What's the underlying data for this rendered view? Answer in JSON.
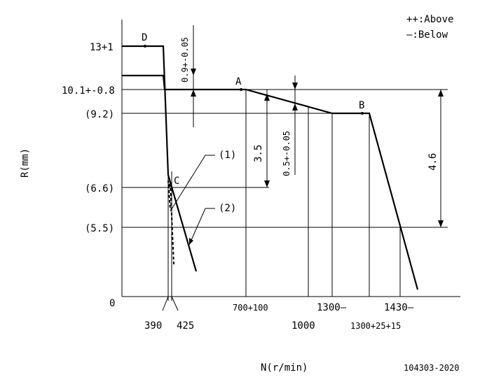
{
  "legend": {
    "above": "++:Above",
    "below": "—:Below"
  },
  "axes": {
    "y_label": "R(mm)",
    "x_label": "N(r/min)",
    "origin": "0"
  },
  "y_ticks": [
    "13+1",
    "10.1+-0.8",
    "(9.2)",
    "(6.6)",
    "(5.5)"
  ],
  "x_ticks": [
    "390",
    "425",
    "700+100",
    "1000",
    "1300—",
    "1300+25+15",
    "1430—"
  ],
  "points": [
    "D",
    "A",
    "B",
    "C"
  ],
  "callouts": [
    "(1)",
    "(2)"
  ],
  "dimensions": [
    "0.9+-0.05",
    "3.5",
    "0.5+-0.05",
    "4.6"
  ],
  "drawing_no": "104303-2020"
}
